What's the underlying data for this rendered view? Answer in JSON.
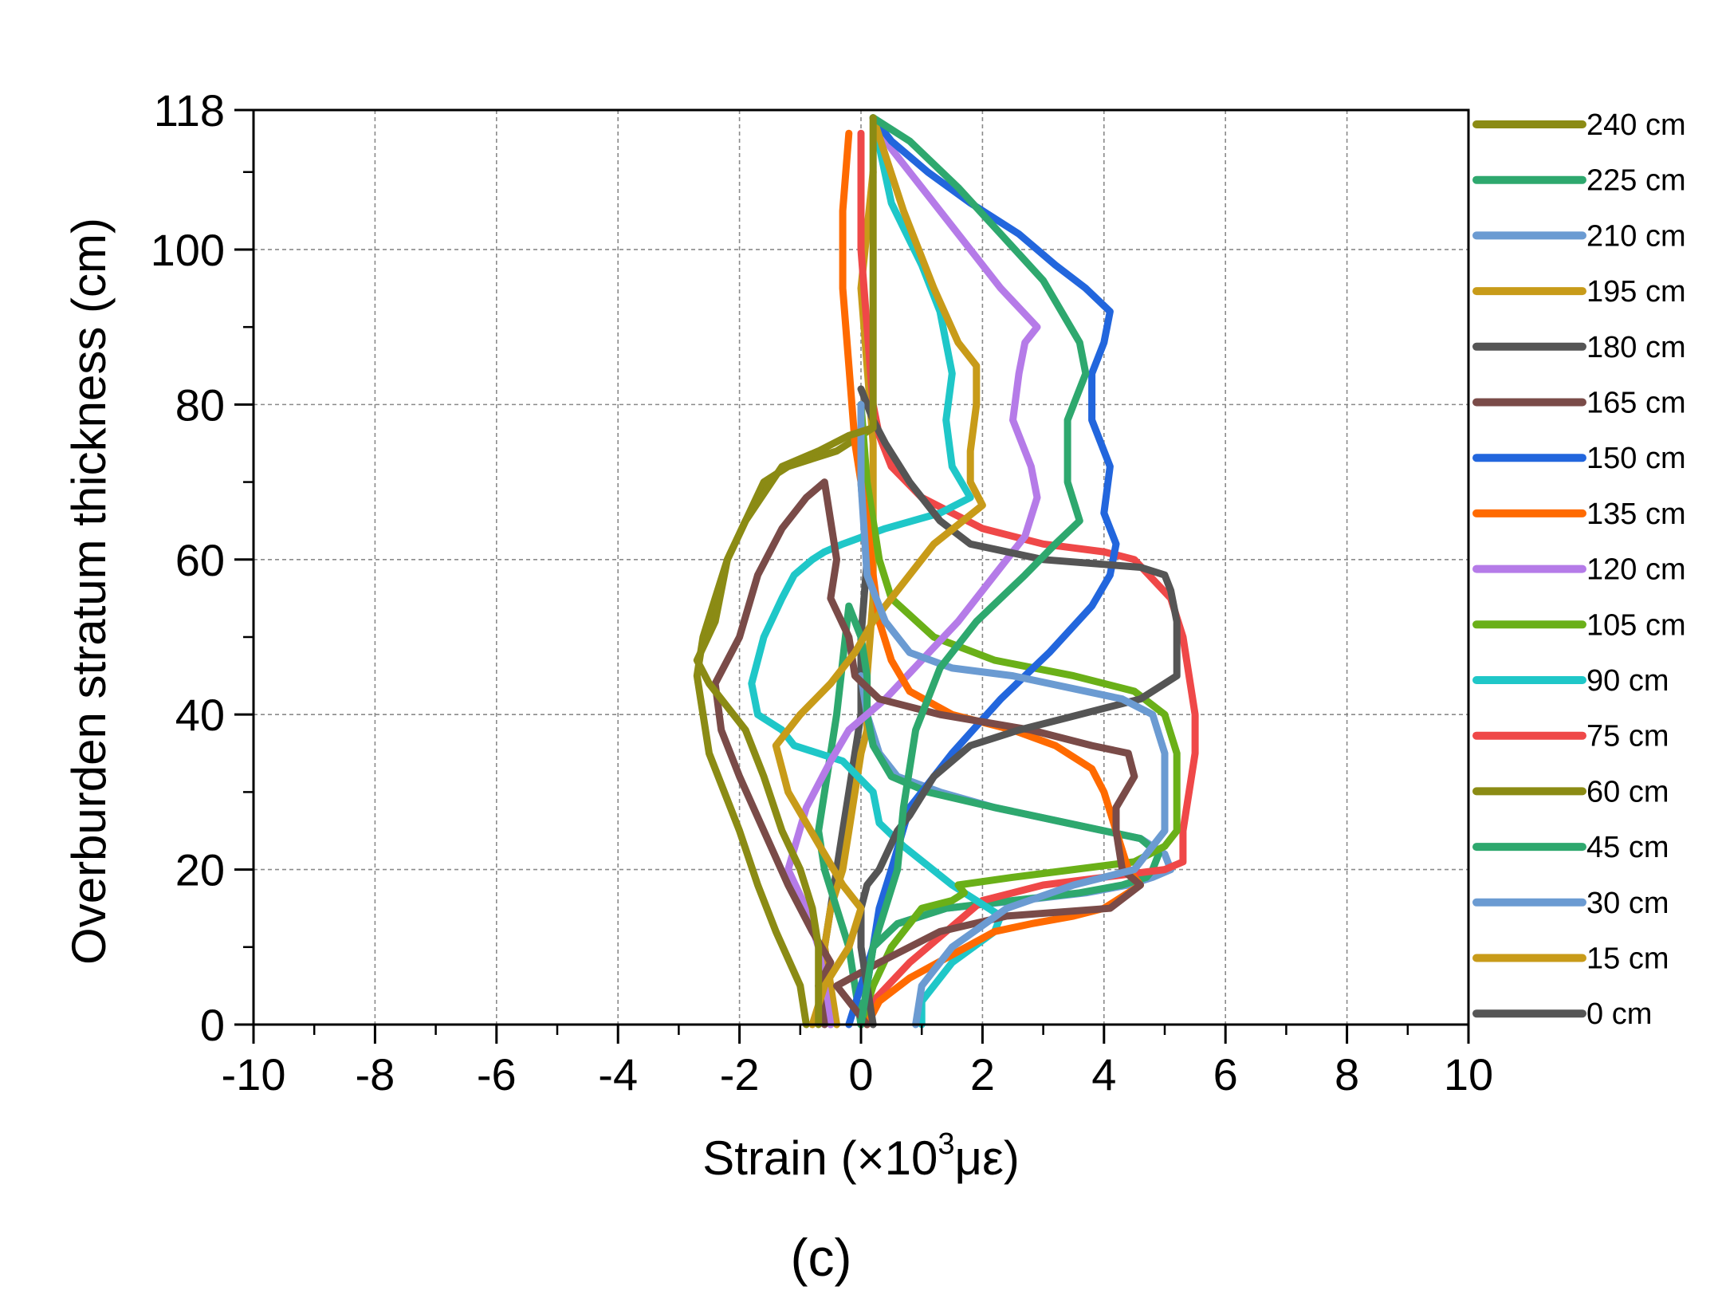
{
  "figure": {
    "panel_label": "(c)"
  },
  "chart_data": {
    "type": "line",
    "title": "",
    "xlabel": "Strain (×10³με)",
    "xlabel_parts": {
      "before": "Strain (×10",
      "sup": "3",
      "after": "με)"
    },
    "ylabel": "Overburden stratum thickness (cm)",
    "xlim": [
      -10,
      10
    ],
    "ylim": [
      0,
      118
    ],
    "xticks": [
      -10,
      -8,
      -6,
      -4,
      -2,
      0,
      2,
      4,
      6,
      8,
      10
    ],
    "yticks": [
      0,
      20,
      40,
      60,
      80,
      100,
      118
    ],
    "grid": true,
    "legend_position": "right-outside",
    "series": [
      {
        "name": "240 cm",
        "color": "#8b8b14",
        "x": [
          -0.7,
          -0.7,
          -0.8,
          -1.0,
          -1.3,
          -1.6,
          -1.9,
          -2.5,
          -2.7,
          -2.4,
          -2.2,
          -1.9,
          -1.3,
          -0.7,
          -0.2,
          0.2,
          0.2,
          0.2,
          0.2,
          0.2,
          0.2
        ],
        "y": [
          0,
          10,
          15,
          20,
          25,
          32,
          38,
          44,
          47,
          52,
          60,
          65,
          72,
          74,
          76,
          77,
          80,
          90,
          100,
          110,
          117
        ]
      },
      {
        "name": "225 cm",
        "color": "#2ea86e",
        "x": [
          0,
          0.1,
          0.2,
          0.4,
          0.6,
          0.7,
          0.9,
          1.3,
          1.9,
          2.7,
          3.2,
          3.6,
          3.4,
          3.4,
          3.7,
          3.6,
          3.0,
          2.3,
          1.6,
          0.8,
          0.2
        ],
        "y": [
          0,
          5,
          10,
          15,
          20,
          28,
          38,
          46,
          52,
          58,
          62,
          65,
          70,
          78,
          84,
          88,
          96,
          102,
          108,
          114,
          117
        ]
      },
      {
        "name": "210 cm",
        "color": "#6b9bd2",
        "x": [
          0.9,
          1.0,
          1.5,
          2.4,
          3.5,
          4.5,
          5.0,
          5.0,
          4.8,
          4.3,
          2.5,
          1.5,
          0.8,
          0.4,
          0.1,
          0,
          0
        ],
        "y": [
          0,
          5,
          10,
          15,
          18,
          20,
          25,
          35,
          40,
          42,
          45,
          46,
          48,
          52,
          58,
          70,
          80
        ]
      },
      {
        "name": "195 cm",
        "color": "#c89b19",
        "x": [
          -0.8,
          -0.6,
          -0.2,
          0,
          -0.3,
          -0.6,
          -0.9,
          -1.2,
          -1.4,
          -1.0,
          -0.5,
          -0.1,
          0.2,
          0.6,
          1.2,
          2.0,
          1.8,
          1.8,
          1.9,
          1.9,
          1.6,
          1.2,
          0.7,
          0.2
        ],
        "y": [
          0,
          5,
          10,
          15,
          18,
          22,
          26,
          30,
          36,
          40,
          44,
          48,
          52,
          56,
          62,
          67,
          70,
          74,
          80,
          85,
          88,
          95,
          105,
          117
        ]
      },
      {
        "name": "180 cm",
        "color": "#555555",
        "x": [
          0.2,
          0.1,
          0,
          0,
          0.1,
          0.3,
          0.6,
          0.8,
          1.2,
          1.8,
          2.6,
          3.6,
          4.6,
          5.0,
          5.2,
          5.2,
          5.2,
          5.1,
          5.0,
          4.6,
          3.0,
          1.8,
          1.3,
          0.8,
          0.4,
          0.2,
          0
        ],
        "y": [
          0,
          5,
          10,
          15,
          18,
          20,
          25,
          27,
          32,
          36,
          38,
          40,
          42,
          44,
          45,
          48,
          52,
          56,
          58,
          59,
          60,
          62,
          65,
          70,
          75,
          78,
          82
        ]
      },
      {
        "name": "165 cm",
        "color": "#7a4b48",
        "x": [
          -0.6,
          -0.7,
          -0.5,
          -0.8,
          -1.2,
          -1.6,
          -2.0,
          -2.3,
          -2.4,
          -2.0,
          -1.7,
          -1.3,
          -0.9,
          -0.6,
          -0.4,
          -0.5,
          -0.2,
          -0.1,
          0.3,
          1.3,
          2.8,
          3.8,
          4.4,
          4.5,
          4.2,
          4.2,
          4.3,
          4.6,
          4.1,
          2.4,
          1.3,
          0.3,
          -0.4,
          -0.2,
          0,
          0.1,
          0.1
        ],
        "y": [
          0,
          5,
          8,
          12,
          18,
          25,
          32,
          38,
          44,
          50,
          58,
          64,
          68,
          70,
          60,
          55,
          50,
          45,
          42,
          40,
          38,
          36,
          35,
          32,
          28,
          25,
          20,
          18,
          15,
          14,
          12,
          8,
          5,
          3,
          1,
          0,
          0
        ]
      },
      {
        "name": "150 cm",
        "color": "#2266dd",
        "x": [
          -0.2,
          0,
          0.2,
          0.3,
          0.5,
          0.8,
          1.5,
          2.3,
          3.1,
          3.8,
          4.1,
          4.2,
          4.0,
          4.1,
          3.8,
          3.8,
          4.0,
          4.1,
          3.7,
          3.2,
          2.6,
          1.8,
          1.1,
          0.5,
          0.2
        ],
        "y": [
          0,
          5,
          10,
          15,
          20,
          28,
          35,
          42,
          48,
          54,
          58,
          62,
          66,
          72,
          78,
          84,
          88,
          92,
          95,
          98,
          102,
          106,
          110,
          114,
          117
        ]
      },
      {
        "name": "135 cm",
        "color": "#ff6a00",
        "x": [
          0.1,
          0.3,
          0.8,
          1.5,
          2.2,
          2.8,
          3.5,
          4.0,
          4.2,
          4.4,
          4.6,
          4.5,
          4.4,
          4.2,
          4.0,
          3.8,
          3.2,
          2.5,
          1.5,
          0.8,
          0.5,
          0.3,
          0.2,
          0.1,
          -0.1,
          -0.2,
          -0.3,
          -0.3,
          -0.2
        ],
        "y": [
          0,
          3,
          6,
          9,
          12,
          13,
          14,
          15,
          16,
          17,
          18,
          19,
          20,
          25,
          30,
          33,
          36,
          38,
          40,
          43,
          47,
          52,
          58,
          65,
          75,
          85,
          95,
          105,
          115
        ]
      },
      {
        "name": "120 cm",
        "color": "#b57be8",
        "x": [
          -0.5,
          -0.6,
          -0.7,
          -0.9,
          -1.2,
          -0.9,
          -0.5,
          -0.2,
          0.4,
          1.0,
          1.6,
          2.2,
          2.7,
          2.9,
          2.8,
          2.5,
          2.6,
          2.7,
          2.9,
          2.3,
          1.6,
          1.0,
          0.5,
          0.2
        ],
        "y": [
          0,
          5,
          10,
          15,
          20,
          28,
          34,
          38,
          42,
          47,
          52,
          58,
          63,
          68,
          72,
          78,
          84,
          88,
          90,
          95,
          102,
          108,
          113,
          117
        ]
      },
      {
        "name": "105 cm",
        "color": "#6ab018",
        "x": [
          0,
          0.2,
          0.5,
          1.0,
          1.5,
          1.7,
          1.6,
          2.5,
          3.5,
          4.5,
          5.0,
          5.2,
          5.2,
          5.2,
          5.0,
          4.5,
          3.5,
          2.2,
          1.2,
          0.5,
          0.3,
          0.1,
          0
        ],
        "y": [
          0,
          5,
          10,
          15,
          16,
          17,
          18,
          19,
          20,
          21,
          23,
          25,
          30,
          35,
          40,
          43,
          45,
          47,
          50,
          55,
          60,
          70,
          80
        ]
      },
      {
        "name": "90 cm",
        "color": "#1fc7c8",
        "x": [
          1.0,
          1.0,
          1.5,
          2.2,
          2.3,
          1.5,
          0.7,
          0.3,
          0.2,
          -0.3,
          -1.1,
          -1.3,
          -1.7,
          -1.8,
          -1.6,
          -1.3,
          -1.1,
          -0.8,
          -0.6,
          -0.3,
          0.4,
          1.3,
          1.8,
          1.5,
          1.4,
          1.5,
          1.4,
          1.3,
          1.0,
          0.5,
          0.2
        ],
        "y": [
          0,
          3,
          8,
          12,
          14,
          18,
          23,
          26,
          30,
          34,
          36,
          38,
          40,
          44,
          50,
          55,
          58,
          60,
          61,
          62,
          64,
          66,
          68,
          72,
          78,
          84,
          88,
          92,
          98,
          106,
          117
        ]
      },
      {
        "name": "75 cm",
        "color": "#ef4848",
        "x": [
          0.1,
          0.2,
          0.8,
          1.4,
          2.0,
          3.0,
          4.0,
          5.0,
          5.3,
          5.3,
          5.5,
          5.5,
          5.3,
          5.1,
          4.5,
          4.0,
          3.0,
          2.0,
          1.0,
          0.5,
          0.3,
          0.2,
          0.1,
          0,
          0
        ],
        "y": [
          0,
          3,
          8,
          12,
          16,
          18,
          19,
          20,
          21,
          25,
          35,
          40,
          50,
          55,
          60,
          61,
          62,
          64,
          68,
          72,
          76,
          80,
          90,
          100,
          115
        ]
      },
      {
        "name": "60 cm",
        "color": "#8b8b14",
        "x": [
          -0.9,
          -1.0,
          -1.4,
          -1.7,
          -2.0,
          -2.5,
          -2.7,
          -2.6,
          -2.4,
          -2.2,
          -1.9,
          -1.6,
          -1.2,
          -0.8,
          -0.4,
          -0.2,
          0,
          0.2
        ],
        "y": [
          0,
          5,
          12,
          18,
          25,
          35,
          45,
          50,
          55,
          60,
          65,
          70,
          72,
          73,
          74,
          75,
          76,
          77
        ]
      },
      {
        "name": "45 cm",
        "color": "#2ea86e",
        "x": [
          0,
          0.1,
          0.2,
          0.6,
          1.4,
          2.5,
          3.6,
          4.3,
          4.7,
          4.8,
          4.9,
          4.6,
          3.4,
          2.2,
          1.1,
          0.5,
          0.2,
          0.1,
          0.1,
          0,
          -0.1,
          -0.2,
          -0.4,
          -0.6,
          -0.7,
          -0.6,
          -0.4,
          -0.2,
          -0.1,
          0
        ],
        "y": [
          0,
          5,
          10,
          13,
          15,
          16,
          17,
          18,
          19,
          20,
          22,
          24,
          26,
          28,
          30,
          32,
          36,
          40,
          45,
          50,
          52,
          54,
          40,
          30,
          25,
          20,
          15,
          10,
          5,
          0
        ]
      },
      {
        "name": "30 cm",
        "color": "#6b9bd2",
        "x": [
          0,
          0.1,
          0.2,
          0.6,
          1.4,
          2.6,
          3.7,
          4.4,
          4.8,
          5.1,
          5.0,
          4.6,
          3.4,
          2.2,
          1.3,
          0.6,
          0.3,
          0.1,
          0
        ],
        "y": [
          0,
          5,
          10,
          13,
          15,
          16,
          17,
          18,
          19,
          20,
          22,
          24,
          26,
          28,
          30,
          32,
          35,
          40,
          45
        ]
      },
      {
        "name": "15 cm",
        "color": "#c89b19",
        "x": [
          -0.4,
          -0.5,
          -0.6,
          -0.5,
          -0.3,
          -0.2,
          -0.1,
          0,
          0.1,
          0.1,
          0.2,
          0.2,
          0.2,
          0.1,
          0,
          0.2
        ],
        "y": [
          0,
          5,
          10,
          15,
          20,
          25,
          30,
          35,
          38,
          45,
          55,
          65,
          75,
          85,
          95,
          110
        ]
      },
      {
        "name": "0 cm",
        "color": "#555555",
        "x": [
          -0.5,
          -0.5,
          -0.6,
          -0.5,
          -0.4,
          -0.3,
          -0.2,
          -0.1,
          0,
          0,
          0.1,
          0,
          0
        ],
        "y": [
          0,
          5,
          10,
          15,
          20,
          25,
          30,
          35,
          40,
          50,
          60,
          70,
          80
        ]
      }
    ]
  }
}
